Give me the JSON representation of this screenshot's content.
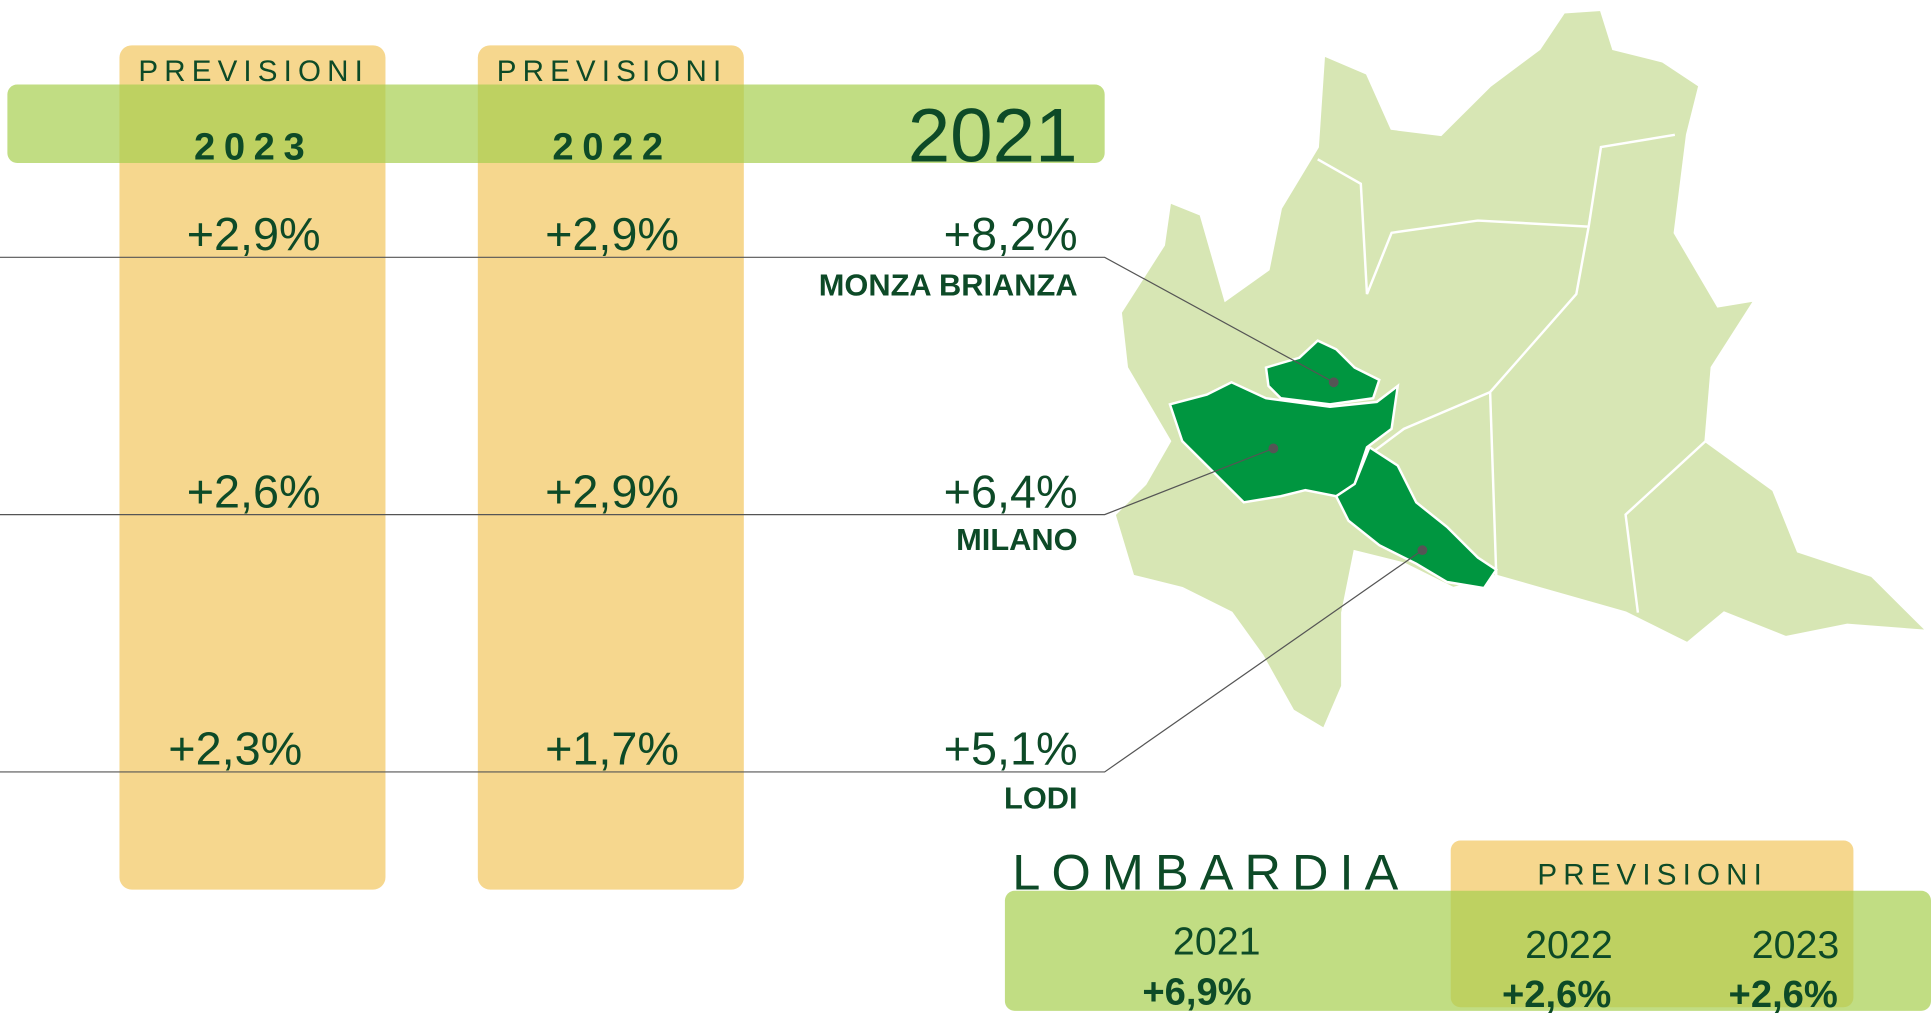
{
  "table": {
    "columns": [
      {
        "label": "PREVISIONI",
        "year": "2023"
      },
      {
        "label": "PREVISIONI",
        "year": "2022"
      },
      {
        "year": "2021"
      }
    ],
    "rows": [
      {
        "name": "MONZA BRIANZA",
        "values": [
          "+2,9%",
          "+2,9%",
          "+8,2%"
        ]
      },
      {
        "name": "MILANO",
        "values": [
          "+2,6%",
          "+2,9%",
          "+6,4%"
        ]
      },
      {
        "name": "LODI",
        "values": [
          "+2,3%",
          "+1,7%",
          "+5,1%"
        ]
      }
    ]
  },
  "region": {
    "title": "LOMBARDIA",
    "forecast_label": "PREVISIONI",
    "years": [
      "2021",
      "2022",
      "2023"
    ],
    "values": [
      "+6,9%",
      "+2,6%",
      "+2,6%"
    ]
  }
}
